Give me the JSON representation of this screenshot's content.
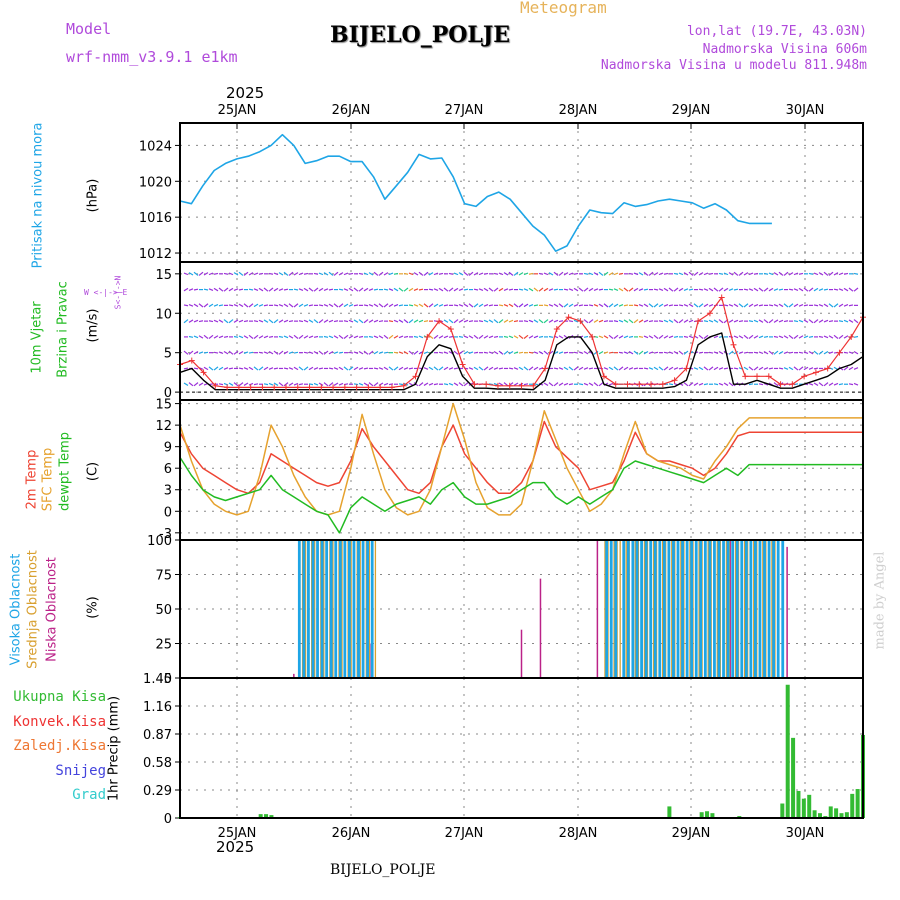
{
  "header": {
    "meteogram_label": "Meteogram",
    "model_label": "Model",
    "model_name": "wrf-nmm_v3.9.1  e1km",
    "station": "BIJELO_POLJE",
    "lonlat": "lon,lat (19.7E, 43.03N)",
    "altitude": "Nadmorska Visina 606m",
    "model_altitude": "Nadmorska Visina u modelu 811.948m",
    "year_top": "2025",
    "year_bottom": "2025",
    "footer_station": "BIJELO_POLJE",
    "watermark": "made by Angel"
  },
  "colors": {
    "pressure": "#1ea5e6",
    "temp2m": "#ee4433",
    "sfc_temp": "#e6a22e",
    "dewpoint": "#22bb22",
    "wind_speed": "#000000",
    "gust": "#ee3333",
    "high_cloud": "#1ea5e6",
    "mid_cloud": "#d8a030",
    "low_cloud": "#bb2288",
    "total_rain": "#33bb33",
    "conv_rain": "#ee3333",
    "frozen_rain": "#ee7733",
    "snow": "#4444dd",
    "hail": "#33cccc",
    "label_purple": "#b04adb"
  },
  "panel_labels": {
    "pressure": "Pritisak na nivou mora",
    "pressure_unit": "(hPa)",
    "wind1": "10m Vjetar",
    "wind2": "Brzina i Pravac",
    "wind_unit": "(m/s)",
    "wind_dir": "W <-|-> E",
    "wind_dir2": "S<-|->N",
    "temp1": "2m Temp",
    "temp2": "SFC Temp",
    "temp3": "dewpt Temp",
    "temp_unit": "(C)",
    "cloud1": "Visoka Oblacnost",
    "cloud2": "Srednja Oblacnost",
    "cloud3": "Niska Oblacnost",
    "cloud_unit": "(%)",
    "precip_unit": "1hr Precip (mm)",
    "precip_legend": [
      "Ukupna Kisa",
      "Konvek.Kisa",
      "Zaledj.Kisa",
      "Snijeg",
      "Grad"
    ]
  },
  "chart_data": [
    {
      "type": "line",
      "name": "pressure",
      "x_unit": "hours from 24JAN 12UTC",
      "days": [
        "25JAN",
        "26JAN",
        "27JAN",
        "28JAN",
        "29JAN",
        "30JAN"
      ],
      "ylim": [
        1011,
        1026.5
      ],
      "yticks": [
        1012,
        1016,
        1020,
        1024
      ],
      "x": [
        0,
        3,
        6,
        9,
        12,
        15,
        18,
        21,
        24,
        27,
        30,
        33,
        36,
        39,
        42,
        45,
        48,
        51,
        54,
        57,
        60,
        63,
        66,
        69,
        72,
        75,
        78,
        81,
        84,
        87,
        90,
        93,
        96,
        99,
        102,
        105,
        108,
        111,
        114,
        117,
        120,
        123,
        126,
        129,
        132,
        135,
        138,
        141,
        144,
        147,
        150,
        153,
        156,
        159,
        162,
        165,
        168,
        171,
        174,
        177,
        180
      ],
      "values": [
        1017.8,
        1017.5,
        1019.5,
        1021.2,
        1022.0,
        1022.5,
        1022.8,
        1023.3,
        1024.0,
        1025.2,
        1024.0,
        1022.0,
        1022.3,
        1022.8,
        1022.8,
        1022.2,
        1022.2,
        1020.5,
        1018.0,
        1019.5,
        1021.0,
        1023.0,
        1022.5,
        1022.6,
        1020.5,
        1017.5,
        1017.2,
        1018.3,
        1018.8,
        1018.0,
        1016.5,
        1015.0,
        1014.0,
        1012.2,
        1012.8,
        1015.0,
        1016.8,
        1016.5,
        1016.4,
        1017.6,
        1017.2,
        1017.4,
        1017.8,
        1018.0,
        1017.8,
        1017.6,
        1017.0,
        1017.5,
        1016.8,
        1015.6,
        1015.3,
        1015.3,
        1015.3,
        1015.3,
        1015.3,
        1015.3,
        1015.3,
        1015.3,
        1015.3,
        1015.3,
        1015.3
      ]
    },
    {
      "type": "line",
      "name": "wind",
      "ylim": [
        -1,
        16.5
      ],
      "yticks": [
        0,
        5,
        10,
        15
      ],
      "series": [
        {
          "key": "speed",
          "values": [
            2.5,
            3.0,
            1.5,
            0.3,
            0.3,
            0.3,
            0.3,
            0.3,
            0.3,
            0.3,
            0.3,
            0.3,
            0.3,
            0.3,
            0.3,
            0.3,
            0.3,
            0.3,
            0.3,
            0.3,
            1.0,
            4.5,
            6.0,
            5.5,
            2.0,
            0.5,
            0.5,
            0.4,
            0.4,
            0.4,
            0.3,
            1.5,
            6.0,
            7.0,
            7.0,
            5.0,
            1.0,
            0.5,
            0.5,
            0.5,
            0.5,
            0.5,
            0.7,
            1.5,
            6.0,
            7.0,
            7.5,
            1.0,
            1.0,
            1.5,
            1.0,
            0.5,
            0.5,
            1.0,
            1.5,
            2.0,
            3.0,
            3.5,
            4.5
          ]
        },
        {
          "key": "gust",
          "values": [
            3.5,
            4.0,
            2.5,
            0.8,
            0.6,
            0.6,
            0.6,
            0.6,
            0.6,
            0.6,
            0.6,
            0.6,
            0.6,
            0.6,
            0.6,
            0.6,
            0.6,
            0.6,
            0.6,
            0.8,
            2.0,
            7.0,
            9.0,
            8.0,
            3.5,
            1.0,
            1.0,
            0.8,
            0.8,
            0.8,
            0.8,
            3.0,
            8.0,
            9.5,
            9.0,
            7.0,
            2.0,
            1.0,
            1.0,
            1.0,
            1.0,
            1.0,
            1.5,
            3.0,
            9.0,
            10.0,
            12.0,
            6.0,
            2.0,
            2.0,
            2.0,
            1.0,
            1.0,
            2.0,
            2.5,
            3.0,
            5.0,
            7.0,
            9.5
          ]
        }
      ]
    },
    {
      "type": "line",
      "name": "temperature",
      "ylim": [
        -4,
        15.5
      ],
      "yticks": [
        -3,
        0,
        3,
        6,
        9,
        12,
        15
      ],
      "series": [
        {
          "key": "temp2m",
          "values": [
            11,
            8,
            6,
            5,
            4,
            3,
            2.5,
            4,
            8,
            7,
            6,
            5,
            4,
            3.5,
            4,
            7,
            11.5,
            9,
            7,
            5,
            3,
            2.5,
            4,
            9,
            12,
            8,
            6,
            4,
            2.5,
            2.5,
            4,
            7,
            12.5,
            9,
            7.5,
            6,
            3,
            3.5,
            4,
            7,
            11,
            8,
            7,
            7,
            6.5,
            6,
            5,
            6,
            8,
            10.5,
            11,
            11,
            11,
            11,
            11,
            11,
            11,
            11,
            11,
            11,
            11
          ]
        },
        {
          "key": "sfc_temp",
          "values": [
            12,
            7,
            3,
            1,
            0,
            -0.5,
            0,
            5,
            12,
            9,
            5,
            2,
            0,
            -0.5,
            0,
            6,
            13.5,
            8,
            3,
            0.5,
            -0.5,
            0,
            3,
            9,
            15,
            10,
            4,
            0.5,
            -0.5,
            -0.5,
            1,
            7,
            14,
            10,
            6,
            3,
            0,
            1,
            3,
            8,
            12.5,
            8,
            7,
            6.5,
            6,
            5,
            4.5,
            7,
            9,
            11.5,
            13,
            13,
            13,
            13,
            13,
            13,
            13,
            13,
            13,
            13,
            13
          ]
        },
        {
          "key": "dewpoint",
          "values": [
            7.5,
            5,
            3,
            2,
            1.5,
            2,
            2.5,
            3,
            5,
            3,
            2,
            1,
            0,
            -0.5,
            -3,
            0.5,
            2,
            1,
            0,
            1,
            1.5,
            2,
            1,
            3,
            4,
            2,
            1,
            1,
            1.5,
            2,
            3,
            4,
            4,
            2,
            1,
            2,
            1,
            2,
            3,
            6,
            7,
            6.5,
            6,
            5.5,
            5,
            4.5,
            4,
            5,
            6,
            5,
            6.5,
            6.5,
            6.5,
            6.5,
            6.5,
            6.5,
            6.5,
            6.5,
            6.5,
            6.5,
            6.5
          ]
        }
      ]
    },
    {
      "type": "bar",
      "name": "cloud_cover",
      "ylim": [
        0,
        100
      ],
      "yticks": [
        0,
        25,
        50,
        75,
        100
      ],
      "series": [
        {
          "key": "low",
          "bars": [
            [
              12,
              3
            ],
            [
              16,
              6
            ],
            [
              20,
              25
            ],
            [
              36,
              35
            ],
            [
              38,
              72
            ],
            [
              44,
              100
            ],
            [
              50,
              100
            ],
            [
              55,
              98
            ],
            [
              58,
              100
            ],
            [
              64,
              95
            ],
            [
              132,
              12
            ],
            [
              135,
              5
            ]
          ]
        },
        {
          "key": "mid",
          "bars": [
            [
              6,
              5
            ],
            [
              370,
              100
            ],
            [
              390,
              100
            ],
            [
              420,
              100
            ],
            [
              440,
              100
            ],
            [
              460,
              100
            ],
            [
              628,
              100
            ],
            [
              650,
              100
            ],
            [
              660,
              70
            ],
            [
              690,
              100
            ],
            [
              710,
              100
            ],
            [
              730,
              100
            ],
            [
              750,
              100
            ],
            [
              770,
              100
            ],
            [
              790,
              100
            ],
            [
              820,
              100
            ]
          ]
        },
        {
          "key": "high",
          "range_px_note": "",
          "ranges": [
            [
              31.5,
              51.5
            ],
            [
              112.5,
              116
            ],
            [
              117,
              120
            ],
            [
              120.5,
              159
            ]
          ],
          "value": 100
        }
      ]
    },
    {
      "type": "bar",
      "name": "precipitation",
      "ylim": [
        0,
        1.45
      ],
      "yticks": [
        0,
        0.29,
        0.58,
        0.87,
        1.16,
        1.45
      ],
      "series": [
        {
          "key": "total",
          "bars": [
            [
              0,
              0.01
            ],
            [
              15,
              0.04
            ],
            [
              16,
              0.04
            ],
            [
              17,
              0.03
            ],
            [
              18,
              0.01
            ],
            [
              91,
              0.12
            ],
            [
              97,
              0.06
            ],
            [
              98,
              0.07
            ],
            [
              99,
              0.05
            ],
            [
              104,
              0.02
            ],
            [
              112,
              0.15
            ],
            [
              113,
              1.38
            ],
            [
              114,
              0.83
            ],
            [
              115,
              0.28
            ],
            [
              116,
              0.2
            ],
            [
              117,
              0.24
            ],
            [
              118,
              0.08
            ],
            [
              119,
              0.05
            ],
            [
              120,
              0.02
            ],
            [
              121,
              0.12
            ],
            [
              122,
              0.1
            ],
            [
              123,
              0.05
            ],
            [
              124,
              0.06
            ],
            [
              125,
              0.25
            ],
            [
              126,
              0.3
            ],
            [
              127,
              0.86
            ]
          ]
        }
      ]
    }
  ]
}
